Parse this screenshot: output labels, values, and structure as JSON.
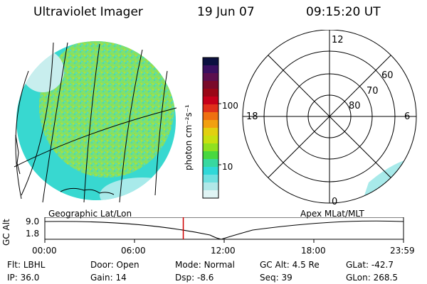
{
  "header": {
    "title": "Ultraviolet Imager",
    "date": "19 Jun 07",
    "time": "09:15:20 UT"
  },
  "colorbar": {
    "unit_label": "photon cm⁻²s⁻¹",
    "ticks": [
      "100",
      "10"
    ],
    "colors": [
      "#0b1040",
      "#3a1060",
      "#5c0f4e",
      "#7a0b2a",
      "#9a0716",
      "#c6001a",
      "#e0301a",
      "#ef7010",
      "#f2a010",
      "#e2d010",
      "#c8e010",
      "#90e020",
      "#48d840",
      "#38d8a0",
      "#30d8d8",
      "#70e0e0",
      "#b0e8e8",
      "#e0f4f4"
    ]
  },
  "polar_plot": {
    "mlt_labels": [
      "12",
      "18",
      "6",
      "0"
    ],
    "mlat_labels": [
      "60",
      "70",
      "80"
    ]
  },
  "timeline": {
    "left_label": "Geographic Lat/Lon",
    "right_label": "Apex MLat/MLT",
    "axis_label": "GC Alt",
    "y_ticks": [
      "9.0",
      "1.8"
    ],
    "x_ticks": [
      "00:00",
      "06:00",
      "12:00",
      "18:00",
      "23:59"
    ],
    "current_time_fraction": 0.386,
    "marker_color": "#d00000"
  },
  "status": {
    "row1": [
      {
        "label": "Flt:",
        "value": "LBHL"
      },
      {
        "label": "Door:",
        "value": "Open"
      },
      {
        "label": "Mode:",
        "value": "Normal"
      },
      {
        "label": "GC Alt:",
        "value": "4.5 Re"
      },
      {
        "label": "GLat:",
        "value": "-42.7"
      }
    ],
    "row2": [
      {
        "label": "IP:",
        "value": "36.0"
      },
      {
        "label": "Gain:",
        "value": "14"
      },
      {
        "label": "Dsp:",
        "value": "-8.6"
      },
      {
        "label": "Seq:",
        "value": "39"
      },
      {
        "label": "GLon:",
        "value": "268.5"
      }
    ]
  }
}
